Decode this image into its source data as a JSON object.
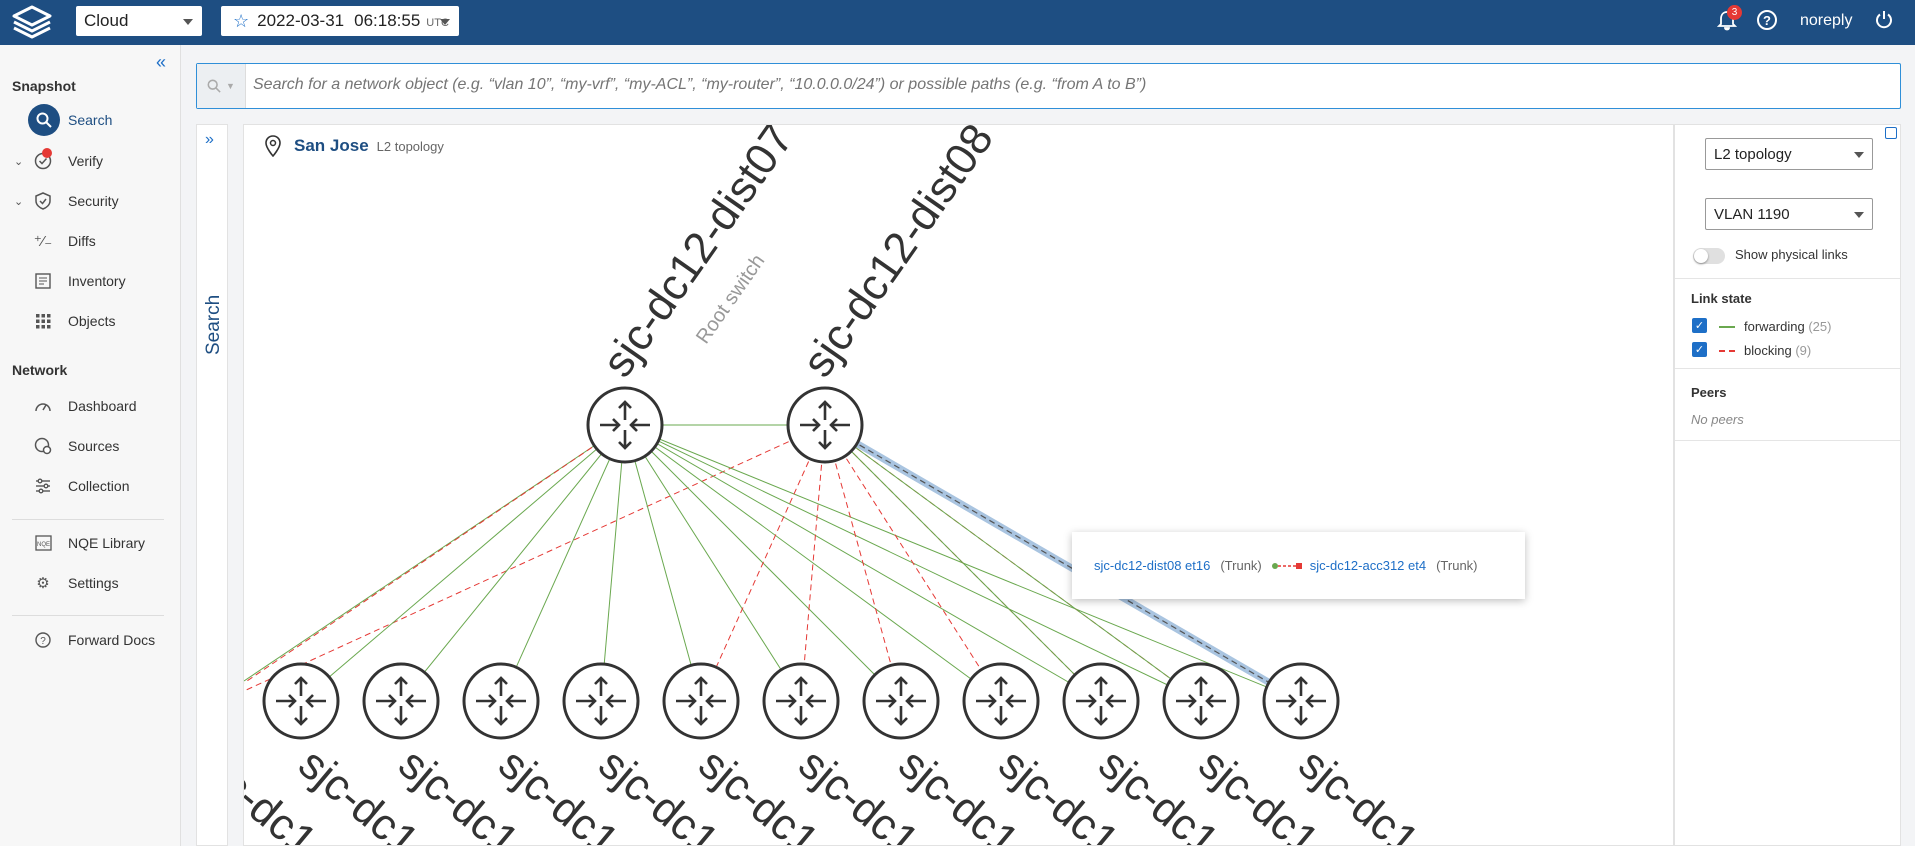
{
  "topbar": {
    "environment": "Cloud",
    "snapshot_date": "2022-03-31",
    "snapshot_time": "06:18:55",
    "snapshot_tz": "UTC",
    "notification_count": "3",
    "username": "noreply"
  },
  "sidebar": {
    "snapshot_heading": "Snapshot",
    "snapshot_items": [
      {
        "label": "Search",
        "icon": "search-icon",
        "active": true
      },
      {
        "label": "Verify",
        "icon": "verify-icon"
      },
      {
        "label": "Security",
        "icon": "shield-icon"
      },
      {
        "label": "Diffs",
        "icon": "diff-icon"
      },
      {
        "label": "Inventory",
        "icon": "inventory-icon"
      },
      {
        "label": "Objects",
        "icon": "grid-icon"
      }
    ],
    "network_heading": "Network",
    "network_items": [
      {
        "label": "Dashboard",
        "icon": "gauge-icon"
      },
      {
        "label": "Sources",
        "icon": "sources-icon"
      },
      {
        "label": "Collection",
        "icon": "sliders-icon"
      }
    ],
    "extra_items": [
      {
        "label": "NQE Library",
        "icon": "nqe-icon"
      },
      {
        "label": "Settings",
        "icon": "gear-icon"
      },
      {
        "label": "Forward Docs",
        "icon": "help-icon"
      }
    ]
  },
  "search": {
    "placeholder": "Search for a network object (e.g. “vlan 10”, “my-vrf”, “my-ACL”, “my-router”, “10.0.0.0/24”) or possible paths (e.g. “from A to B”)",
    "panel_label": "Search"
  },
  "topology": {
    "site": "San Jose",
    "view": "L2 topology",
    "top_nodes": [
      {
        "name": "sjc-dc12-dist07",
        "subtitle": "Root switch"
      },
      {
        "name": "sjc-dc12-dist08",
        "subtitle": ""
      }
    ],
    "bottom_label_text": "sjc-dc1",
    "bottom_node_count": 11,
    "colors": {
      "forwarding": "#6aa84f",
      "blocking": "#e53935",
      "node": "#333333"
    }
  },
  "tooltip": {
    "src": "sjc-dc12-dist08 et16",
    "src_mode": "(Trunk)",
    "dst": "sjc-dc12-acc312 et4",
    "dst_mode": "(Trunk)"
  },
  "right_panel": {
    "view_select": "L2 topology",
    "vlan_select": "VLAN 1190",
    "physical_links_label": "Show physical links",
    "link_state_heading": "Link state",
    "forwarding_label": "forwarding",
    "forwarding_count": "(25)",
    "blocking_label": "blocking",
    "blocking_count": "(9)",
    "peers_heading": "Peers",
    "no_peers": "No peers"
  }
}
